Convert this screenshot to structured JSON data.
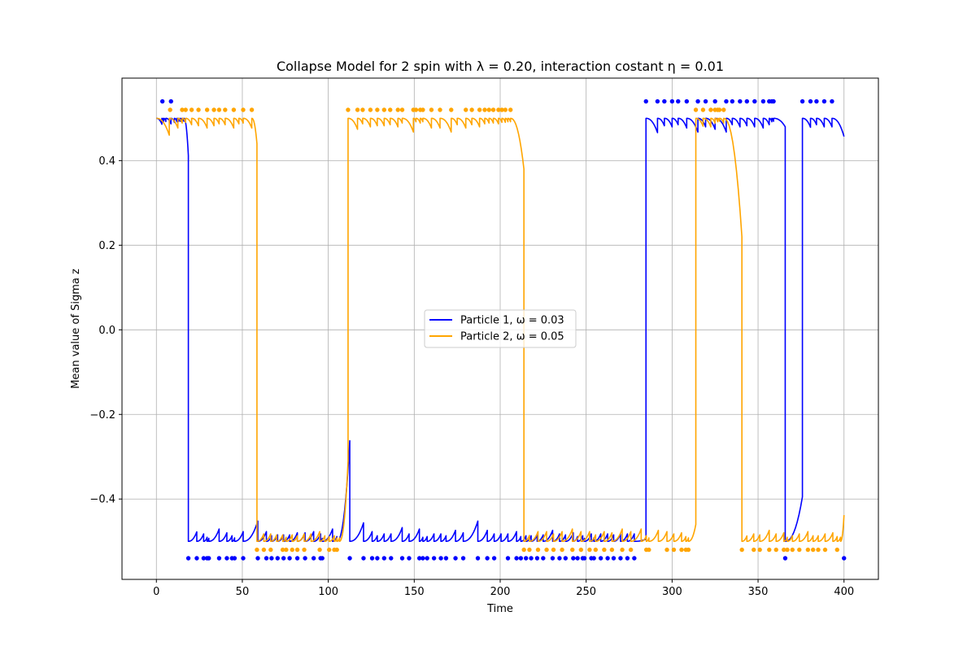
{
  "chart_data": {
    "type": "line",
    "title": "Collapse Model for 2 spin with λ = 0.20, interaction costant η = 0.01",
    "xlabel": "Time",
    "ylabel": "Mean value of Sigma z",
    "xlim": [
      -20,
      420
    ],
    "ylim": [
      -0.59,
      0.595
    ],
    "xticks": [
      0,
      50,
      100,
      150,
      200,
      250,
      300,
      350,
      400
    ],
    "yticks": [
      -0.4,
      -0.2,
      0.0,
      0.2,
      0.4
    ],
    "ytick_labels": [
      "−0.4",
      "−0.2",
      "0.0",
      "0.2",
      "0.4"
    ],
    "grid": true,
    "legend_position": "center",
    "series": [
      {
        "name": "Particle 1, ω = 0.03",
        "color": "#0000ff",
        "segments": [
          {
            "x0": 0,
            "x1": 18.6,
            "level": 0.5,
            "marks": [
              3.2,
              4.2,
              5.5,
              8.5,
              10.5,
              12.0,
              13.0,
              14.0,
              15.0,
              16.0
            ],
            "end": 0.412
          },
          {
            "x0": 18.6,
            "x1": 112.5,
            "level": -0.5,
            "marks": [
              23.5,
              27.5,
              29.5,
              30.5,
              36.5,
              41.0,
              44.0,
              45.5,
              50.5,
              59.0,
              64.0,
              67.0,
              70.5,
              74.0,
              77.5,
              82.0,
              86.5,
              91.5,
              95.5,
              96.5,
              102.5,
              105.0
            ],
            "end": -0.262
          },
          {
            "x0": 112.5,
            "x1": 284.8,
            "level": -0.5,
            "marks": [
              120.5,
              125.5,
              128.5,
              132.5,
              136.5,
              143.0,
              147.0,
              153.0,
              155.0,
              157.5,
              161.5,
              165.5,
              168.5,
              174.0,
              178.5,
              187.0,
              192.5,
              196.5,
              200.5,
              204.5,
              209.5,
              212.0,
              215.0,
              218.0,
              221.5,
              225.0,
              230.5,
              234.5,
              238.0,
              242.5,
              245.0,
              248.0,
              249.0,
              253.0,
              254.5,
              258.5,
              262.5,
              266.0,
              270.0,
              274.0,
              278.0
            ],
            "end": -0.495
          },
          {
            "x0": 284.8,
            "x1": 365.8,
            "level": 0.5,
            "marks": [
              291.5,
              295.5,
              300.0,
              303.5,
              308.5,
              315.0,
              319.5,
              325.0,
              331.5,
              335.0,
              339.5,
              343.5,
              348.0,
              353.0,
              356.5,
              358.0,
              359.0
            ],
            "end": 0.48
          },
          {
            "x0": 365.8,
            "x1": 375.8,
            "level": -0.5,
            "marks": [],
            "end": -0.395
          },
          {
            "x0": 375.8,
            "x1": 400,
            "level": 0.5,
            "marks": [
              380.5,
              384.0,
              388.5,
              393.0
            ],
            "end": 0.457
          }
        ],
        "collapse_points": [
          {
            "x": 3.5,
            "y": 0.54
          },
          {
            "x": 8.5,
            "y": 0.54
          },
          {
            "x": 18.6,
            "y": -0.54
          },
          {
            "x": 23.5,
            "y": -0.54
          },
          {
            "x": 27.5,
            "y": -0.54
          },
          {
            "x": 29.5,
            "y": -0.54
          },
          {
            "x": 30.5,
            "y": -0.54
          },
          {
            "x": 36.5,
            "y": -0.54
          },
          {
            "x": 41.0,
            "y": -0.54
          },
          {
            "x": 44.0,
            "y": -0.54
          },
          {
            "x": 45.5,
            "y": -0.54
          },
          {
            "x": 50.5,
            "y": -0.54
          },
          {
            "x": 59.0,
            "y": -0.54
          },
          {
            "x": 64.0,
            "y": -0.54
          },
          {
            "x": 67.0,
            "y": -0.54
          },
          {
            "x": 70.5,
            "y": -0.54
          },
          {
            "x": 74.0,
            "y": -0.54
          },
          {
            "x": 77.5,
            "y": -0.54
          },
          {
            "x": 82.0,
            "y": -0.54
          },
          {
            "x": 86.5,
            "y": -0.54
          },
          {
            "x": 91.5,
            "y": -0.54
          },
          {
            "x": 95.5,
            "y": -0.54
          },
          {
            "x": 96.5,
            "y": -0.54
          },
          {
            "x": 112.5,
            "y": -0.54
          },
          {
            "x": 120.5,
            "y": -0.54
          },
          {
            "x": 125.5,
            "y": -0.54
          },
          {
            "x": 128.5,
            "y": -0.54
          },
          {
            "x": 132.5,
            "y": -0.54
          },
          {
            "x": 136.5,
            "y": -0.54
          },
          {
            "x": 143.0,
            "y": -0.54
          },
          {
            "x": 147.0,
            "y": -0.54
          },
          {
            "x": 153.0,
            "y": -0.54
          },
          {
            "x": 155.0,
            "y": -0.54
          },
          {
            "x": 157.5,
            "y": -0.54
          },
          {
            "x": 161.5,
            "y": -0.54
          },
          {
            "x": 165.5,
            "y": -0.54
          },
          {
            "x": 168.5,
            "y": -0.54
          },
          {
            "x": 174.0,
            "y": -0.54
          },
          {
            "x": 178.5,
            "y": -0.54
          },
          {
            "x": 187.0,
            "y": -0.54
          },
          {
            "x": 192.5,
            "y": -0.54
          },
          {
            "x": 196.5,
            "y": -0.54
          },
          {
            "x": 204.5,
            "y": -0.54
          },
          {
            "x": 209.5,
            "y": -0.54
          },
          {
            "x": 212.0,
            "y": -0.54
          },
          {
            "x": 215.0,
            "y": -0.54
          },
          {
            "x": 218.0,
            "y": -0.54
          },
          {
            "x": 221.5,
            "y": -0.54
          },
          {
            "x": 225.0,
            "y": -0.54
          },
          {
            "x": 230.5,
            "y": -0.54
          },
          {
            "x": 234.5,
            "y": -0.54
          },
          {
            "x": 238.0,
            "y": -0.54
          },
          {
            "x": 242.5,
            "y": -0.54
          },
          {
            "x": 245.0,
            "y": -0.54
          },
          {
            "x": 248.0,
            "y": -0.54
          },
          {
            "x": 249.0,
            "y": -0.54
          },
          {
            "x": 253.0,
            "y": -0.54
          },
          {
            "x": 254.5,
            "y": -0.54
          },
          {
            "x": 258.5,
            "y": -0.54
          },
          {
            "x": 262.5,
            "y": -0.54
          },
          {
            "x": 266.0,
            "y": -0.54
          },
          {
            "x": 270.0,
            "y": -0.54
          },
          {
            "x": 274.0,
            "y": -0.54
          },
          {
            "x": 278.0,
            "y": -0.54
          },
          {
            "x": 284.8,
            "y": 0.54
          },
          {
            "x": 291.5,
            "y": 0.54
          },
          {
            "x": 295.5,
            "y": 0.54
          },
          {
            "x": 300.0,
            "y": 0.54
          },
          {
            "x": 303.5,
            "y": 0.54
          },
          {
            "x": 308.5,
            "y": 0.54
          },
          {
            "x": 315.0,
            "y": 0.54
          },
          {
            "x": 319.5,
            "y": 0.54
          },
          {
            "x": 325.0,
            "y": 0.54
          },
          {
            "x": 331.5,
            "y": 0.54
          },
          {
            "x": 335.0,
            "y": 0.54
          },
          {
            "x": 339.5,
            "y": 0.54
          },
          {
            "x": 343.5,
            "y": 0.54
          },
          {
            "x": 348.0,
            "y": 0.54
          },
          {
            "x": 353.0,
            "y": 0.54
          },
          {
            "x": 356.5,
            "y": 0.54
          },
          {
            "x": 358.0,
            "y": 0.54
          },
          {
            "x": 359.0,
            "y": 0.54
          },
          {
            "x": 365.8,
            "y": -0.54
          },
          {
            "x": 375.8,
            "y": 0.54
          },
          {
            "x": 380.5,
            "y": 0.54
          },
          {
            "x": 384.0,
            "y": 0.54
          },
          {
            "x": 388.5,
            "y": 0.54
          },
          {
            "x": 393.0,
            "y": 0.54
          },
          {
            "x": 400.0,
            "y": -0.54
          }
        ]
      },
      {
        "name": "Particle 2, ω = 0.05",
        "color": "#ffa500",
        "segments": [
          {
            "x0": 0,
            "x1": 58.5,
            "level": 0.5,
            "marks": [
              7.5,
              12.5,
              15.0,
              17.0,
              20.5,
              24.5,
              29.5,
              33.5,
              36.5,
              40.0,
              45.0,
              48.0,
              50.5,
              55.5
            ],
            "end": 0.44
          },
          {
            "x0": 58.5,
            "x1": 111.5,
            "level": -0.5,
            "marks": [
              62.5,
              66.5,
              70.0,
              73.5,
              75.5,
              79.0,
              82.0,
              86.0,
              90.0,
              95.0,
              98.0,
              100.5,
              103.5,
              105.0,
              106.5
            ],
            "end": -0.31
          },
          {
            "x0": 111.5,
            "x1": 213.8,
            "level": 0.5,
            "marks": [
              117.0,
              120.0,
              124.5,
              128.5,
              132.5,
              136.0,
              140.5,
              143.0,
              149.5,
              151.0,
              153.5,
              155.0,
              160.0,
              165.0,
              171.5,
              175.0,
              180.0,
              183.5,
              188.0,
              191.0,
              193.5,
              196.0,
              199.0,
              201.0,
              203.0,
              204.5,
              206.0
            ],
            "end": 0.38
          },
          {
            "x0": 213.8,
            "x1": 313.8,
            "level": -0.5,
            "marks": [
              217.0,
              222.0,
              227.0,
              231.0,
              236.0,
              242.0,
              247.0,
              252.0,
              255.5,
              260.5,
              265.0,
              271.0,
              276.0,
              282.0,
              285.0,
              286.5,
              292.0,
              297.0,
              301.0,
              305.5,
              308.0,
              309.5
            ],
            "end": -0.46
          },
          {
            "x0": 313.8,
            "x1": 340.6,
            "level": 0.5,
            "marks": [
              318.0,
              322.5,
              325.0,
              326.5,
              327.5,
              330.0
            ],
            "end": 0.22
          },
          {
            "x0": 340.6,
            "x1": 400,
            "level": -0.5,
            "marks": [
              343.5,
              347.5,
              351.0,
              356.5,
              360.5,
              365.0,
              367.0,
              370.0,
              374.0,
              379.0,
              382.0,
              385.0,
              389.0,
              393.5,
              396.0,
              398.0
            ],
            "end": -0.438
          }
        ],
        "collapse_points": [
          {
            "x": 8.0,
            "y": 0.52
          },
          {
            "x": 15.0,
            "y": 0.52
          },
          {
            "x": 17.0,
            "y": 0.52
          },
          {
            "x": 20.5,
            "y": 0.52
          },
          {
            "x": 24.5,
            "y": 0.52
          },
          {
            "x": 29.5,
            "y": 0.52
          },
          {
            "x": 33.5,
            "y": 0.52
          },
          {
            "x": 36.5,
            "y": 0.52
          },
          {
            "x": 40.0,
            "y": 0.52
          },
          {
            "x": 45.0,
            "y": 0.52
          },
          {
            "x": 50.5,
            "y": 0.52
          },
          {
            "x": 55.5,
            "y": 0.52
          },
          {
            "x": 58.5,
            "y": -0.52
          },
          {
            "x": 62.5,
            "y": -0.52
          },
          {
            "x": 66.5,
            "y": -0.52
          },
          {
            "x": 73.5,
            "y": -0.52
          },
          {
            "x": 75.5,
            "y": -0.52
          },
          {
            "x": 79.0,
            "y": -0.52
          },
          {
            "x": 82.0,
            "y": -0.52
          },
          {
            "x": 86.0,
            "y": -0.52
          },
          {
            "x": 95.0,
            "y": -0.52
          },
          {
            "x": 100.5,
            "y": -0.52
          },
          {
            "x": 103.5,
            "y": -0.52
          },
          {
            "x": 105.0,
            "y": -0.52
          },
          {
            "x": 111.5,
            "y": 0.52
          },
          {
            "x": 117.0,
            "y": 0.52
          },
          {
            "x": 120.0,
            "y": 0.52
          },
          {
            "x": 124.5,
            "y": 0.52
          },
          {
            "x": 128.5,
            "y": 0.52
          },
          {
            "x": 132.5,
            "y": 0.52
          },
          {
            "x": 136.0,
            "y": 0.52
          },
          {
            "x": 140.5,
            "y": 0.52
          },
          {
            "x": 143.0,
            "y": 0.52
          },
          {
            "x": 149.5,
            "y": 0.52
          },
          {
            "x": 151.0,
            "y": 0.52
          },
          {
            "x": 153.5,
            "y": 0.52
          },
          {
            "x": 155.0,
            "y": 0.52
          },
          {
            "x": 160.0,
            "y": 0.52
          },
          {
            "x": 165.0,
            "y": 0.52
          },
          {
            "x": 171.5,
            "y": 0.52
          },
          {
            "x": 180.0,
            "y": 0.52
          },
          {
            "x": 183.5,
            "y": 0.52
          },
          {
            "x": 188.0,
            "y": 0.52
          },
          {
            "x": 191.0,
            "y": 0.52
          },
          {
            "x": 193.5,
            "y": 0.52
          },
          {
            "x": 196.0,
            "y": 0.52
          },
          {
            "x": 199.0,
            "y": 0.52
          },
          {
            "x": 201.0,
            "y": 0.52
          },
          {
            "x": 203.0,
            "y": 0.52
          },
          {
            "x": 206.0,
            "y": 0.52
          },
          {
            "x": 213.8,
            "y": -0.52
          },
          {
            "x": 217.0,
            "y": -0.52
          },
          {
            "x": 222.0,
            "y": -0.52
          },
          {
            "x": 227.0,
            "y": -0.52
          },
          {
            "x": 231.0,
            "y": -0.52
          },
          {
            "x": 236.0,
            "y": -0.52
          },
          {
            "x": 242.0,
            "y": -0.52
          },
          {
            "x": 247.0,
            "y": -0.52
          },
          {
            "x": 252.0,
            "y": -0.52
          },
          {
            "x": 255.5,
            "y": -0.52
          },
          {
            "x": 260.5,
            "y": -0.52
          },
          {
            "x": 265.0,
            "y": -0.52
          },
          {
            "x": 271.0,
            "y": -0.52
          },
          {
            "x": 276.0,
            "y": -0.52
          },
          {
            "x": 285.0,
            "y": -0.52
          },
          {
            "x": 286.5,
            "y": -0.52
          },
          {
            "x": 297.0,
            "y": -0.52
          },
          {
            "x": 301.0,
            "y": -0.52
          },
          {
            "x": 305.5,
            "y": -0.52
          },
          {
            "x": 308.0,
            "y": -0.52
          },
          {
            "x": 309.5,
            "y": -0.52
          },
          {
            "x": 313.8,
            "y": 0.52
          },
          {
            "x": 318.0,
            "y": 0.52
          },
          {
            "x": 322.5,
            "y": 0.52
          },
          {
            "x": 325.0,
            "y": 0.52
          },
          {
            "x": 326.5,
            "y": 0.52
          },
          {
            "x": 327.5,
            "y": 0.52
          },
          {
            "x": 330.0,
            "y": 0.52
          },
          {
            "x": 340.6,
            "y": -0.52
          },
          {
            "x": 347.5,
            "y": -0.52
          },
          {
            "x": 351.0,
            "y": -0.52
          },
          {
            "x": 356.5,
            "y": -0.52
          },
          {
            "x": 360.5,
            "y": -0.52
          },
          {
            "x": 365.0,
            "y": -0.52
          },
          {
            "x": 367.0,
            "y": -0.52
          },
          {
            "x": 370.0,
            "y": -0.52
          },
          {
            "x": 374.0,
            "y": -0.52
          },
          {
            "x": 379.0,
            "y": -0.52
          },
          {
            "x": 382.0,
            "y": -0.52
          },
          {
            "x": 385.0,
            "y": -0.52
          },
          {
            "x": 389.0,
            "y": -0.52
          },
          {
            "x": 396.0,
            "y": -0.52
          }
        ]
      }
    ]
  }
}
